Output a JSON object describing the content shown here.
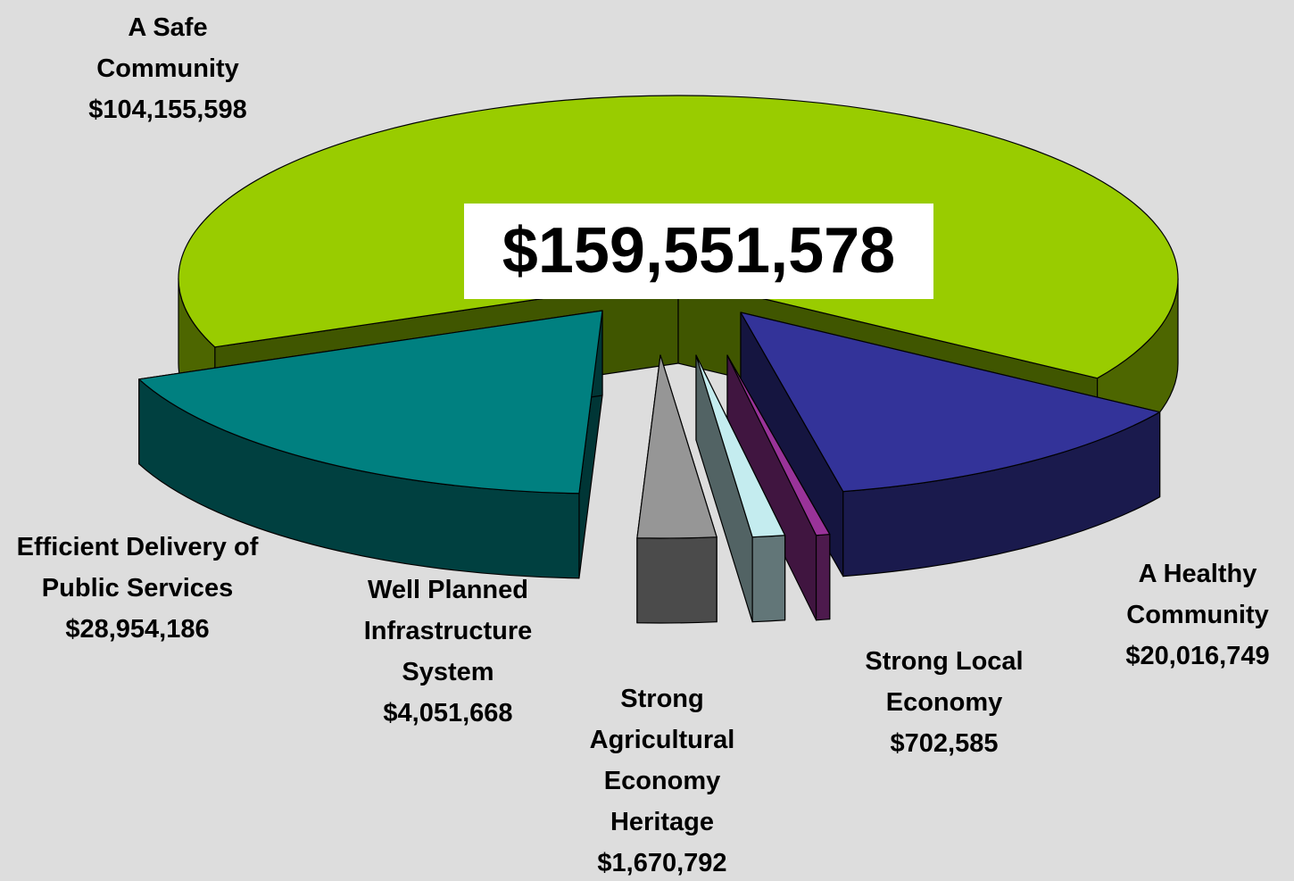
{
  "chart_data": {
    "type": "pie",
    "categories": [
      "A Safe Community",
      "A Healthy Community",
      "Strong Local Economy",
      "Strong Agricultural Economy Heritage",
      "Well Planned Infrastructure System",
      "Efficient Delivery of Public Services"
    ],
    "values": [
      104155598,
      20016749,
      702585,
      1670792,
      4051668,
      28954186
    ],
    "value_labels": [
      "$104,155,598",
      "$20,016,749",
      "$702,585",
      "$1,670,792",
      "$4,051,668",
      "$28,954,186"
    ],
    "colors": [
      "#99cc00",
      "#333399",
      "#993399",
      "#c4ecef",
      "#969696",
      "#008080"
    ],
    "center_label": "$159,551,578"
  }
}
